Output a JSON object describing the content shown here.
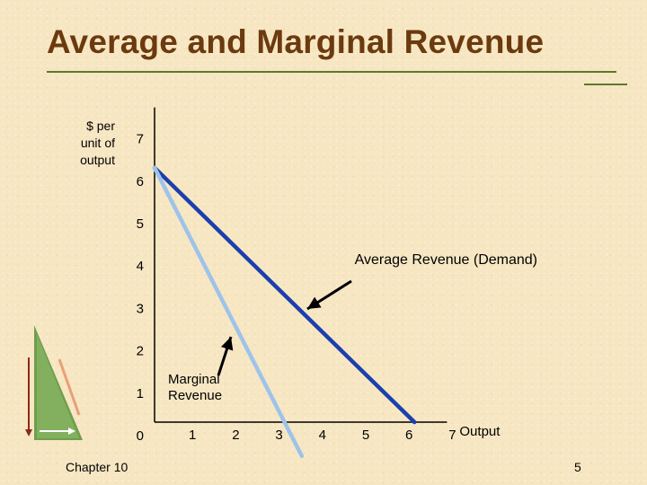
{
  "slide": {
    "title": "Average and Marginal Revenue",
    "chapter": "Chapter 10",
    "page": "5"
  },
  "colors": {
    "title": "#6b3a0e",
    "rule": "#5a7a2a",
    "demand": "#1c3fae",
    "marginal": "#9ec3ea",
    "arrow": "#000000"
  },
  "icons": {
    "corner_decoration": "triangle-ruler-icon"
  },
  "chart_data": {
    "type": "line",
    "ylabel": "$ per\nunit of\noutput",
    "xlabel": "Output",
    "x_ticks": [
      "0",
      "1",
      "2",
      "3",
      "4",
      "5",
      "6",
      "7"
    ],
    "y_ticks": [
      "0",
      "1",
      "2",
      "3",
      "4",
      "5",
      "6",
      "7"
    ],
    "xlim": [
      0,
      7
    ],
    "ylim": [
      0,
      7
    ],
    "series": [
      {
        "name": "Average Revenue (Demand)",
        "x": [
          0,
          6
        ],
        "y": [
          6,
          0
        ]
      },
      {
        "name": "Marginal\nRevenue",
        "x": [
          0,
          3.4
        ],
        "y": [
          6,
          -0.8
        ]
      }
    ],
    "annotations": [
      {
        "text": "Average Revenue (Demand)",
        "points_to": "Average Revenue (Demand)"
      },
      {
        "text": "Marginal\nRevenue",
        "points_to": "Marginal\nRevenue"
      }
    ]
  }
}
